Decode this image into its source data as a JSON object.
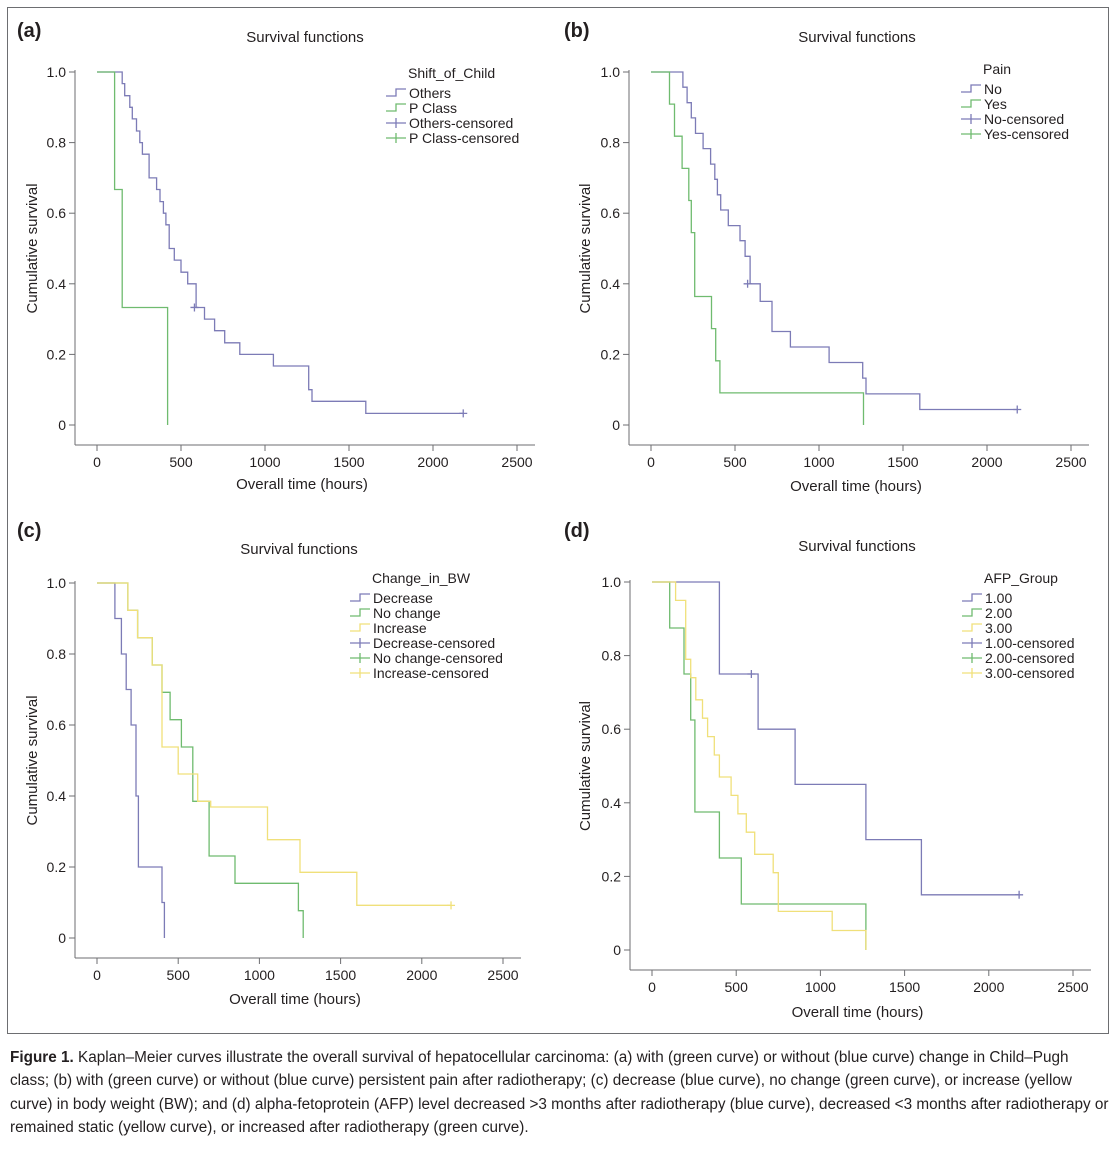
{
  "caption": {
    "label": "Figure 1.",
    "text": "Kaplan–Meier curves illustrate the overall survival of hepatocellular carcinoma: (a) with (green curve) or without (blue curve) change in Child–Pugh class; (b) with (green curve) or without (blue curve) persistent pain after radiotherapy; (c) decrease (blue curve), no change (green curve), or increase (yellow curve) in body weight (BW); and (d) alpha-fetoprotein (AFP) level decreased >3 months after radiotherapy (blue curve), decreased <3 months after radiotherapy or remained static (yellow curve), or increased after radiotherapy (green curve)."
  },
  "colors": {
    "blue": "#7c7bb6",
    "green": "#6fbb6f",
    "yellow": "#f0e07a",
    "frame": "#6d6e71",
    "text": "#231f20"
  },
  "chart_data": [
    {
      "panel": "(a)",
      "type": "line",
      "step": true,
      "title": "Survival functions",
      "xlabel": "Overall time (hours)",
      "ylabel": "Cumulative survival",
      "xlim": [
        0,
        2500
      ],
      "ylim": [
        0,
        1.0
      ],
      "xticks": [
        0,
        500,
        1000,
        1500,
        2000,
        2500
      ],
      "yticks": [
        0,
        0.2,
        0.4,
        0.6,
        0.8,
        1.0
      ],
      "ytick_labels": [
        "0",
        "0.2",
        "0.4",
        "0.6",
        "0.8",
        "1.0"
      ],
      "legend_title": "Shift_of_Child",
      "legend": [
        {
          "label": "Others",
          "color": "blue",
          "kind": "line"
        },
        {
          "label": "P Class",
          "color": "green",
          "kind": "line"
        },
        {
          "label": "Others-censored",
          "color": "blue",
          "kind": "cross"
        },
        {
          "label": "P Class-censored",
          "color": "green",
          "kind": "cross"
        }
      ],
      "series": [
        {
          "name": "Others",
          "color": "blue",
          "x": [
            0,
            150,
            165,
            195,
            210,
            235,
            255,
            270,
            310,
            355,
            375,
            395,
            410,
            430,
            460,
            500,
            540,
            590,
            640,
            700,
            760,
            850,
            1050,
            1260,
            1280,
            1600,
            2180
          ],
          "y": [
            1.0,
            0.967,
            0.933,
            0.9,
            0.867,
            0.833,
            0.8,
            0.767,
            0.7,
            0.667,
            0.633,
            0.6,
            0.567,
            0.5,
            0.467,
            0.433,
            0.4,
            0.333,
            0.3,
            0.267,
            0.233,
            0.2,
            0.167,
            0.1,
            0.067,
            0.033,
            0.033
          ],
          "censored": [
            [
              580,
              0.333
            ],
            [
              2180,
              0.033
            ]
          ]
        },
        {
          "name": "P Class",
          "color": "green",
          "x": [
            0,
            105,
            150,
            420
          ],
          "y": [
            1.0,
            0.667,
            0.333,
            0.0
          ],
          "censored": []
        }
      ]
    },
    {
      "panel": "(b)",
      "type": "line",
      "step": true,
      "title": "Survival functions",
      "xlabel": "Overall time (hours)",
      "ylabel": "Cumulative survival",
      "xlim": [
        0,
        2500
      ],
      "ylim": [
        0,
        1.0
      ],
      "xticks": [
        0,
        500,
        1000,
        1500,
        2000,
        2500
      ],
      "yticks": [
        0,
        0.2,
        0.4,
        0.6,
        0.8,
        1.0
      ],
      "ytick_labels": [
        "0",
        "0.2",
        "0.4",
        "0.6",
        "0.8",
        "1.0"
      ],
      "legend_title": "Pain",
      "legend": [
        {
          "label": "No",
          "color": "blue",
          "kind": "line"
        },
        {
          "label": "Yes",
          "color": "green",
          "kind": "line"
        },
        {
          "label": "No-censored",
          "color": "blue",
          "kind": "cross"
        },
        {
          "label": "Yes-censored",
          "color": "green",
          "kind": "cross"
        }
      ],
      "series": [
        {
          "name": "No",
          "color": "blue",
          "x": [
            0,
            190,
            215,
            240,
            265,
            310,
            355,
            380,
            395,
            415,
            460,
            530,
            560,
            590,
            650,
            720,
            830,
            1060,
            1260,
            1280,
            1600,
            2180
          ],
          "y": [
            1.0,
            0.957,
            0.913,
            0.87,
            0.826,
            0.783,
            0.739,
            0.696,
            0.652,
            0.609,
            0.565,
            0.522,
            0.478,
            0.4,
            0.35,
            0.265,
            0.221,
            0.177,
            0.133,
            0.088,
            0.044,
            0.044
          ],
          "censored": [
            [
              575,
              0.4
            ],
            [
              2180,
              0.044
            ]
          ]
        },
        {
          "name": "Yes",
          "color": "green",
          "x": [
            0,
            110,
            140,
            185,
            225,
            240,
            260,
            360,
            385,
            410,
            1265
          ],
          "y": [
            1.0,
            0.909,
            0.818,
            0.727,
            0.636,
            0.545,
            0.364,
            0.273,
            0.182,
            0.091,
            0.0
          ],
          "censored": []
        }
      ]
    },
    {
      "panel": "(c)",
      "type": "line",
      "step": true,
      "title": "Survival functions",
      "xlabel": "Overall time (hours)",
      "ylabel": "Cumulative survival",
      "xlim": [
        0,
        2500
      ],
      "ylim": [
        0,
        1.0
      ],
      "xticks": [
        0,
        500,
        1000,
        1500,
        2000,
        2500
      ],
      "yticks": [
        0,
        0.2,
        0.4,
        0.6,
        0.8,
        1.0
      ],
      "ytick_labels": [
        "0",
        "0.2",
        "0.4",
        "0.6",
        "0.8",
        "1.0"
      ],
      "legend_title": "Change_in_BW",
      "legend": [
        {
          "label": "Decrease",
          "color": "blue",
          "kind": "line"
        },
        {
          "label": "No change",
          "color": "green",
          "kind": "line"
        },
        {
          "label": "Increase",
          "color": "yellow",
          "kind": "line"
        },
        {
          "label": "Decrease-censored",
          "color": "blue",
          "kind": "cross"
        },
        {
          "label": "No change-censored",
          "color": "green",
          "kind": "cross"
        },
        {
          "label": "Increase-censored",
          "color": "yellow",
          "kind": "cross"
        }
      ],
      "series": [
        {
          "name": "Decrease",
          "color": "blue",
          "x": [
            0,
            110,
            150,
            180,
            210,
            240,
            255,
            400,
            415
          ],
          "y": [
            1.0,
            0.9,
            0.8,
            0.7,
            0.6,
            0.4,
            0.2,
            0.1,
            0.0
          ],
          "censored": []
        },
        {
          "name": "No change",
          "color": "green",
          "x": [
            0,
            190,
            250,
            340,
            400,
            450,
            520,
            590,
            690,
            850,
            1240,
            1270
          ],
          "y": [
            1.0,
            0.923,
            0.846,
            0.769,
            0.692,
            0.615,
            0.538,
            0.385,
            0.231,
            0.154,
            0.077,
            0.0
          ],
          "censored": []
        },
        {
          "name": "Increase",
          "color": "yellow",
          "x": [
            0,
            190,
            250,
            340,
            400,
            500,
            520,
            620,
            700,
            1050,
            1250,
            1600,
            2180
          ],
          "y": [
            1.0,
            0.923,
            0.846,
            0.769,
            0.538,
            0.462,
            0.462,
            0.385,
            0.369,
            0.277,
            0.185,
            0.092,
            0.092
          ],
          "censored": [
            [
              2180,
              0.092
            ]
          ]
        }
      ]
    },
    {
      "panel": "(d)",
      "type": "line",
      "step": true,
      "title": "Survival functions",
      "xlabel": "Overall time (hours)",
      "ylabel": "Cumulative survival",
      "xlim": [
        0,
        2500
      ],
      "ylim": [
        0,
        1.0
      ],
      "xticks": [
        0,
        500,
        1000,
        1500,
        2000,
        2500
      ],
      "yticks": [
        0,
        0.2,
        0.4,
        0.6,
        0.8,
        1.0
      ],
      "ytick_labels": [
        "0",
        "0.2",
        "0.4",
        "0.6",
        "0.8",
        "1.0"
      ],
      "legend_title": "AFP_Group",
      "legend": [
        {
          "label": "1.00",
          "color": "blue",
          "kind": "line"
        },
        {
          "label": "2.00",
          "color": "green",
          "kind": "line"
        },
        {
          "label": "3.00",
          "color": "yellow",
          "kind": "line"
        },
        {
          "label": "1.00-censored",
          "color": "blue",
          "kind": "cross"
        },
        {
          "label": "2.00-censored",
          "color": "green",
          "kind": "cross"
        },
        {
          "label": "3.00-censored",
          "color": "yellow",
          "kind": "cross"
        }
      ],
      "series": [
        {
          "name": "1.00",
          "color": "blue",
          "x": [
            0,
            400,
            630,
            850,
            1270,
            1600,
            2180
          ],
          "y": [
            1.0,
            0.75,
            0.6,
            0.45,
            0.3,
            0.15,
            0.15
          ],
          "censored": [
            [
              590,
              0.75
            ],
            [
              2180,
              0.15
            ]
          ]
        },
        {
          "name": "2.00",
          "color": "green",
          "x": [
            0,
            105,
            190,
            230,
            255,
            400,
            530,
            1270
          ],
          "y": [
            1.0,
            0.875,
            0.75,
            0.625,
            0.375,
            0.25,
            0.125,
            0.0
          ],
          "censored": []
        },
        {
          "name": "3.00",
          "color": "yellow",
          "x": [
            0,
            140,
            200,
            230,
            260,
            300,
            330,
            370,
            400,
            470,
            510,
            560,
            610,
            720,
            750,
            1070,
            1270
          ],
          "y": [
            1.0,
            0.95,
            0.79,
            0.74,
            0.68,
            0.63,
            0.58,
            0.53,
            0.47,
            0.42,
            0.37,
            0.32,
            0.26,
            0.21,
            0.105,
            0.053,
            0.0
          ],
          "censored": []
        }
      ]
    }
  ]
}
